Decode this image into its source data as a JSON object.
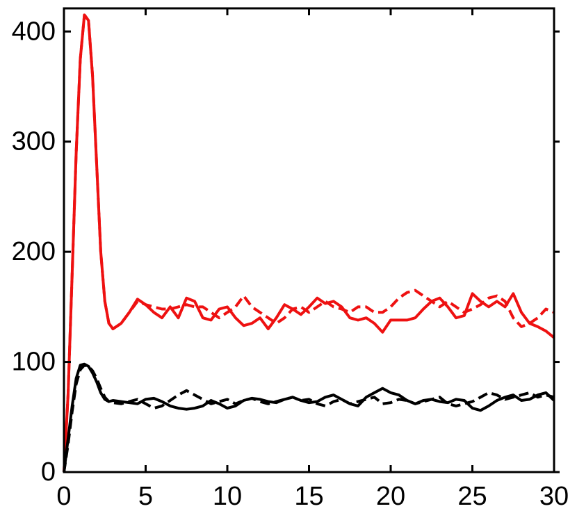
{
  "chart_data": {
    "type": "line",
    "x": [
      0,
      0.25,
      0.5,
      0.75,
      1,
      1.25,
      1.5,
      1.75,
      2,
      2.25,
      2.5,
      2.75,
      3,
      3.5,
      4,
      4.5,
      5,
      5.5,
      6,
      6.5,
      7,
      7.5,
      8,
      8.5,
      9,
      9.5,
      10,
      10.5,
      11,
      11.5,
      12,
      12.5,
      13,
      13.5,
      14,
      14.5,
      15,
      15.5,
      16,
      16.5,
      17,
      17.5,
      18,
      18.5,
      19,
      19.5,
      20,
      20.5,
      21,
      21.5,
      22,
      22.5,
      23,
      23.5,
      24,
      24.5,
      25,
      25.5,
      26,
      26.5,
      27,
      27.5,
      28,
      28.5,
      29,
      29.5,
      30
    ],
    "series": [
      {
        "color": "#ee1111",
        "linestyle": "solid",
        "values": [
          0,
          70,
          180,
          290,
          375,
          415,
          410,
          360,
          280,
          200,
          155,
          135,
          130,
          135,
          145,
          157,
          152,
          145,
          140,
          150,
          140,
          158,
          155,
          140,
          138,
          148,
          150,
          140,
          133,
          135,
          140,
          130,
          140,
          152,
          148,
          143,
          150,
          158,
          153,
          155,
          150,
          140,
          138,
          140,
          135,
          127,
          138,
          138,
          138,
          140,
          148,
          155,
          158,
          150,
          140,
          142,
          162,
          155,
          150,
          155,
          150,
          162,
          145,
          135,
          132,
          128,
          122
        ]
      },
      {
        "color": "#ee1111",
        "linestyle": "dashed",
        "values": [
          0,
          70,
          180,
          290,
          375,
          415,
          410,
          360,
          280,
          200,
          155,
          135,
          130,
          135,
          145,
          155,
          152,
          150,
          148,
          148,
          150,
          152,
          150,
          150,
          145,
          140,
          145,
          150,
          160,
          150,
          145,
          140,
          135,
          140,
          148,
          150,
          145,
          150,
          155,
          150,
          148,
          145,
          150,
          150,
          145,
          145,
          150,
          158,
          163,
          165,
          160,
          155,
          150,
          155,
          150,
          145,
          148,
          152,
          158,
          160,
          155,
          140,
          132,
          135,
          140,
          148,
          145
        ]
      },
      {
        "color": "#000000",
        "linestyle": "solid",
        "values": [
          0,
          30,
          60,
          85,
          97,
          98,
          96,
          90,
          82,
          72,
          66,
          64,
          65,
          64,
          63,
          62,
          66,
          67,
          64,
          60,
          58,
          57,
          58,
          60,
          65,
          62,
          58,
          60,
          65,
          67,
          66,
          64,
          63,
          66,
          68,
          65,
          63,
          64,
          68,
          70,
          66,
          62,
          60,
          68,
          72,
          76,
          72,
          70,
          65,
          62,
          65,
          66,
          64,
          63,
          66,
          65,
          58,
          56,
          60,
          65,
          68,
          70,
          65,
          66,
          70,
          72,
          65
        ]
      },
      {
        "color": "#000000",
        "linestyle": "dashed",
        "values": [
          0,
          25,
          55,
          80,
          93,
          97,
          96,
          92,
          85,
          76,
          68,
          64,
          63,
          62,
          64,
          66,
          62,
          58,
          60,
          65,
          70,
          74,
          70,
          66,
          62,
          64,
          66,
          62,
          65,
          67,
          64,
          62,
          64,
          66,
          68,
          65,
          66,
          62,
          60,
          64,
          66,
          62,
          64,
          66,
          68,
          62,
          63,
          66,
          65,
          62,
          64,
          66,
          68,
          62,
          60,
          62,
          64,
          68,
          72,
          70,
          66,
          68,
          70,
          72,
          68,
          70,
          68
        ]
      }
    ],
    "xlim": [
      0,
      30
    ],
    "xticks": [
      0,
      5,
      10,
      15,
      20,
      25,
      30
    ],
    "ylim": [
      0,
      421
    ],
    "yticks": [
      0,
      100,
      200,
      300,
      400
    ]
  }
}
